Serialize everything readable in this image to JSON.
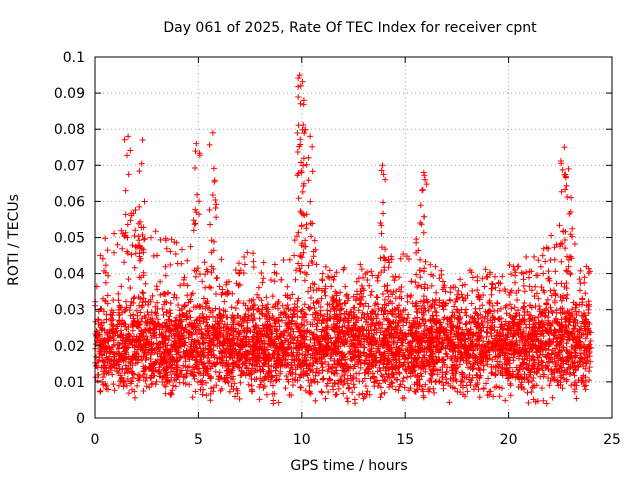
{
  "chart_data": {
    "type": "scatter",
    "title": "Day 061 of 2025, Rate Of TEC Index for receiver cpnt",
    "xlabel": "GPS time / hours",
    "ylabel": "ROTI / TECUs",
    "xlim": [
      0,
      25
    ],
    "ylim": [
      0,
      0.1
    ],
    "x_ticks": [
      "0",
      "5",
      "10",
      "15",
      "20",
      "25"
    ],
    "y_ticks": [
      "0",
      "0.01",
      "0.02",
      "0.03",
      "0.04",
      "0.05",
      "0.06",
      "0.07",
      "0.08",
      "0.09",
      "0.1"
    ],
    "grid": true,
    "marker": "+",
    "color": "#ff0000",
    "data_range_x": [
      0,
      24
    ],
    "typical_band": [
      0.01,
      0.03
    ],
    "notable_peaks": [
      {
        "x": 1.6,
        "y": 0.078
      },
      {
        "x": 2.3,
        "y": 0.077
      },
      {
        "x": 4.9,
        "y": 0.076
      },
      {
        "x": 5.7,
        "y": 0.079
      },
      {
        "x": 9.9,
        "y": 0.095
      },
      {
        "x": 9.95,
        "y": 0.092
      },
      {
        "x": 10.1,
        "y": 0.088
      },
      {
        "x": 10.4,
        "y": 0.078
      },
      {
        "x": 13.9,
        "y": 0.07
      },
      {
        "x": 15.9,
        "y": 0.068
      },
      {
        "x": 22.7,
        "y": 0.075
      },
      {
        "x": 22.9,
        "y": 0.069
      }
    ]
  }
}
